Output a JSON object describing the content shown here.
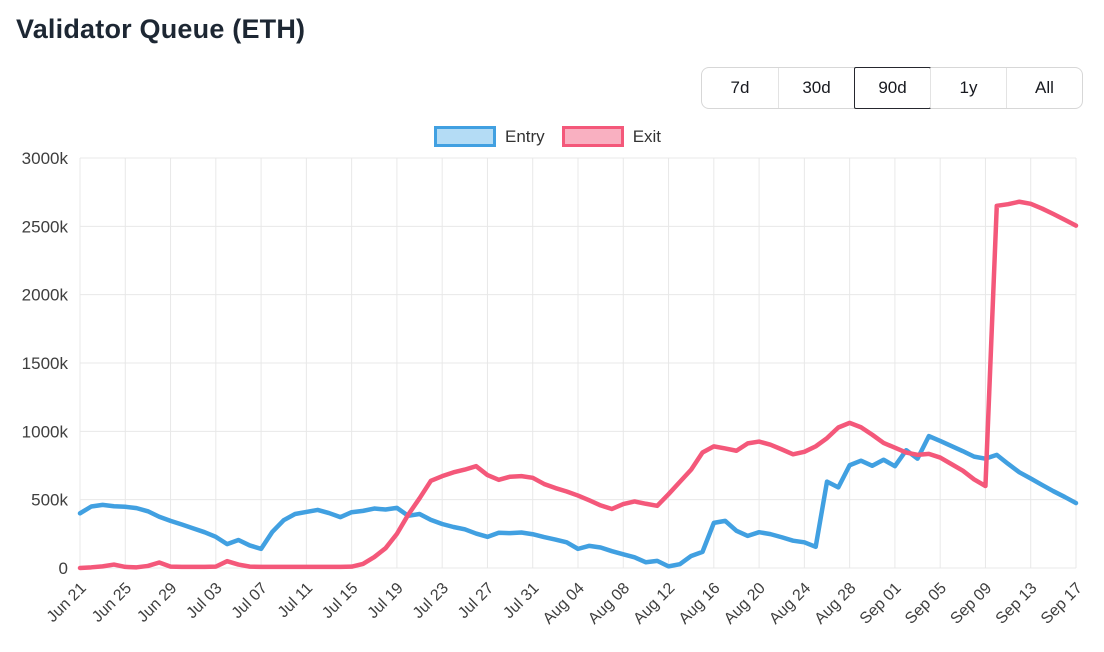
{
  "header": {
    "title": "Validator Queue (ETH)"
  },
  "time_ranges": {
    "options": [
      "7d",
      "30d",
      "90d",
      "1y",
      "All"
    ],
    "active": "90d"
  },
  "legend": {
    "items": [
      {
        "label": "Entry",
        "stroke": "#41a0e1",
        "fill": "#b4dcf5"
      },
      {
        "label": "Exit",
        "stroke": "#f4587a",
        "fill": "#f9b0c1"
      }
    ]
  },
  "colors": {
    "grid": "#e8e8e8",
    "axis_text": "#3e3e3e",
    "title_text": "#1d2733",
    "button_border": "#d7d7d7",
    "button_active_border": "#26272e",
    "entry_line": "#41a0e1",
    "exit_line": "#f4587a"
  },
  "chart_data": {
    "type": "line",
    "title": "Validator Queue (ETH)",
    "xlabel": "",
    "ylabel": "",
    "unit": "k",
    "ylim": [
      0,
      3000
    ],
    "grid": true,
    "legend_position": "top-center",
    "y_ticks": [
      "0",
      "500k",
      "1000k",
      "1500k",
      "2000k",
      "2500k",
      "3000k"
    ],
    "x_tick_every": 4,
    "x_tick_labels_shown": [
      "Jun 21",
      "Jun 25",
      "Jun 29",
      "Jul 03",
      "Jul 07",
      "Jul 11",
      "Jul 15",
      "Jul 19",
      "Jul 23",
      "Jul 27",
      "Jul 31",
      "Aug 04",
      "Aug 08",
      "Aug 12",
      "Aug 16",
      "Aug 20",
      "Aug 24",
      "Aug 28",
      "Sep 01",
      "Sep 05",
      "Sep 09",
      "Sep 13",
      "Sep 17"
    ],
    "x": [
      "Jun 21",
      "Jun 22",
      "Jun 23",
      "Jun 24",
      "Jun 25",
      "Jun 26",
      "Jun 27",
      "Jun 28",
      "Jun 29",
      "Jun 30",
      "Jul 01",
      "Jul 02",
      "Jul 03",
      "Jul 04",
      "Jul 05",
      "Jul 06",
      "Jul 07",
      "Jul 08",
      "Jul 09",
      "Jul 10",
      "Jul 11",
      "Jul 12",
      "Jul 13",
      "Jul 14",
      "Jul 15",
      "Jul 16",
      "Jul 17",
      "Jul 18",
      "Jul 19",
      "Jul 20",
      "Jul 21",
      "Jul 22",
      "Jul 23",
      "Jul 24",
      "Jul 25",
      "Jul 26",
      "Jul 27",
      "Jul 28",
      "Jul 29",
      "Jul 30",
      "Jul 31",
      "Aug 01",
      "Aug 02",
      "Aug 03",
      "Aug 04",
      "Aug 05",
      "Aug 06",
      "Aug 07",
      "Aug 08",
      "Aug 09",
      "Aug 10",
      "Aug 11",
      "Aug 12",
      "Aug 13",
      "Aug 14",
      "Aug 15",
      "Aug 16",
      "Aug 17",
      "Aug 18",
      "Aug 19",
      "Aug 20",
      "Aug 21",
      "Aug 22",
      "Aug 23",
      "Aug 24",
      "Aug 25",
      "Aug 26",
      "Aug 27",
      "Aug 28",
      "Aug 29",
      "Aug 30",
      "Aug 31",
      "Sep 01",
      "Sep 02",
      "Sep 03",
      "Sep 04",
      "Sep 05",
      "Sep 06",
      "Sep 07",
      "Sep 08",
      "Sep 09",
      "Sep 10",
      "Sep 11",
      "Sep 12",
      "Sep 13",
      "Sep 14",
      "Sep 15",
      "Sep 16",
      "Sep 17"
    ],
    "series": [
      {
        "name": "Entry",
        "color": "#41a0e1",
        "values": [
          400,
          450,
          462,
          452,
          448,
          438,
          415,
          375,
          345,
          318,
          290,
          262,
          228,
          175,
          205,
          165,
          140,
          265,
          350,
          395,
          410,
          425,
          402,
          372,
          408,
          418,
          435,
          428,
          440,
          382,
          395,
          352,
          322,
          300,
          283,
          252,
          228,
          258,
          255,
          260,
          247,
          226,
          208,
          188,
          140,
          162,
          150,
          123,
          100,
          78,
          42,
          52,
          12,
          28,
          88,
          118,
          330,
          345,
          272,
          235,
          262,
          248,
          225,
          200,
          188,
          155,
          632,
          590,
          752,
          785,
          748,
          792,
          745,
          862,
          800,
          965,
          930,
          892,
          855,
          815,
          800,
          828,
          762,
          700,
          655,
          608,
          562,
          520,
          475
        ]
      },
      {
        "name": "Exit",
        "color": "#f4587a",
        "values": [
          0,
          5,
          12,
          25,
          8,
          5,
          15,
          40,
          10,
          8,
          8,
          8,
          10,
          50,
          25,
          10,
          8,
          8,
          8,
          8,
          8,
          8,
          8,
          8,
          10,
          30,
          80,
          145,
          250,
          390,
          510,
          638,
          672,
          700,
          720,
          745,
          680,
          645,
          668,
          672,
          660,
          615,
          585,
          560,
          530,
          495,
          458,
          432,
          468,
          487,
          470,
          455,
          540,
          630,
          720,
          845,
          890,
          875,
          858,
          912,
          925,
          902,
          868,
          832,
          850,
          890,
          950,
          1028,
          1062,
          1030,
          975,
          915,
          880,
          845,
          828,
          835,
          808,
          760,
          712,
          648,
          600,
          2650,
          2662,
          2680,
          2665,
          2630,
          2590,
          2548,
          2505
        ]
      }
    ]
  }
}
